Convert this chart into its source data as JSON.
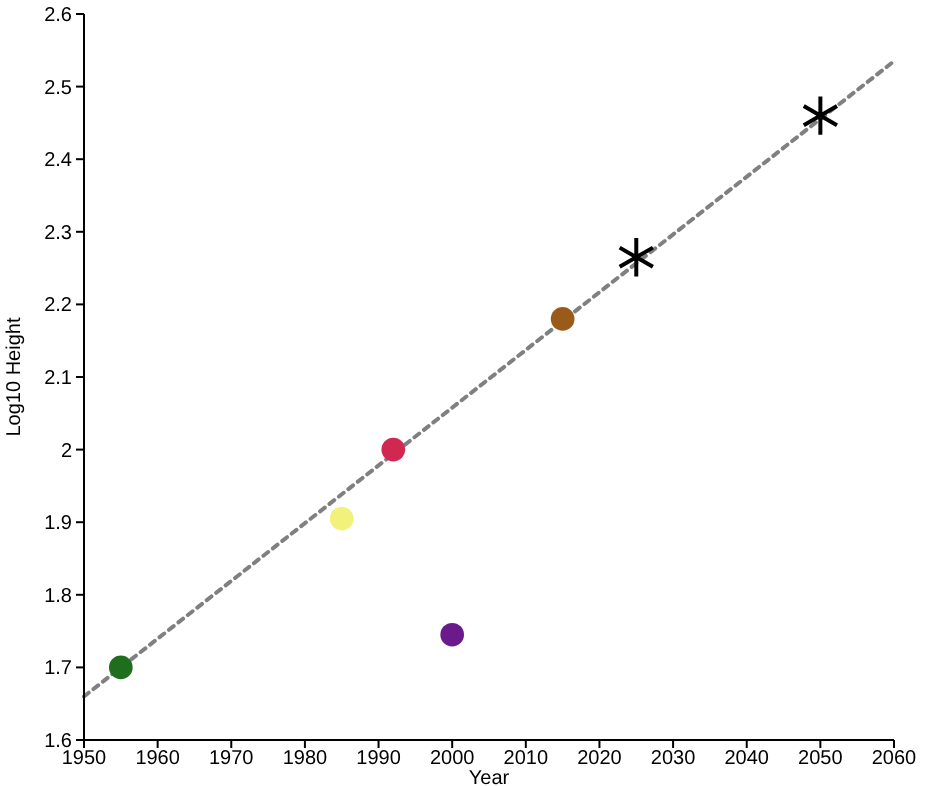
{
  "chart_data": {
    "type": "scatter",
    "xlabel": "Year",
    "ylabel": "Log10 Height",
    "xlim": [
      1950,
      2060
    ],
    "xticks": [
      1950,
      1960,
      1970,
      1980,
      1990,
      2000,
      2010,
      2020,
      2030,
      2040,
      2050,
      2060
    ],
    "ylim": [
      1.6,
      2.6
    ],
    "yticks": [
      1.6,
      1.7,
      1.8,
      1.9,
      2,
      2.1,
      2.2,
      2.3,
      2.4,
      2.5,
      2.6
    ],
    "grid": false,
    "series": [
      {
        "type": "line",
        "x": [
          1950,
          2060
        ],
        "values": [
          1.66,
          2.535
        ],
        "color": "#808080",
        "line_style": "dashed",
        "marker": "none"
      },
      {
        "type": "scatter",
        "x": [
          1955,
          1985,
          1992,
          2000,
          2015
        ],
        "values": [
          1.7,
          1.905,
          2.0,
          1.745,
          2.18
        ],
        "colors": [
          "#1e6e1e",
          "#f2f27a",
          "#d02850",
          "#6a1a8a",
          "#9a5a1a"
        ],
        "marker": "circle"
      },
      {
        "type": "scatter",
        "x": [
          2025,
          2050
        ],
        "values": [
          2.265,
          2.46
        ],
        "color": "#000000",
        "marker": "cross"
      }
    ]
  }
}
